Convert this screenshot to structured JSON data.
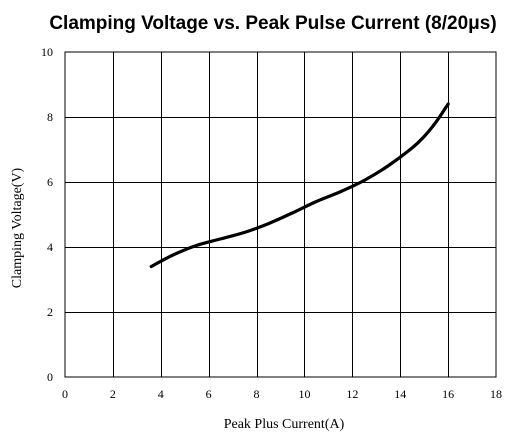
{
  "chart_data": {
    "type": "line",
    "title": "Clamping Voltage vs. Peak Pulse Current (8/20μs)",
    "xlabel": "Peak Plus Current(A)",
    "ylabel": "Clamping Voltage(V)",
    "xlim": [
      0,
      18
    ],
    "ylim": [
      0,
      10
    ],
    "x_ticks": [
      "0",
      "2",
      "4",
      "6",
      "8",
      "10",
      "12",
      "14",
      "16",
      "18"
    ],
    "y_ticks": [
      "0",
      "2",
      "4",
      "6",
      "8",
      "10"
    ],
    "grid": true,
    "series": [
      {
        "color": "#000000",
        "x": [
          3.6,
          4.5,
          5.5,
          6.5,
          7.5,
          8.5,
          9.5,
          10.5,
          11.5,
          12.5,
          13.5,
          14.5,
          15.0,
          15.5,
          16.0
        ],
        "y": [
          3.4,
          3.75,
          4.05,
          4.25,
          4.45,
          4.72,
          5.05,
          5.4,
          5.7,
          6.05,
          6.5,
          7.05,
          7.4,
          7.85,
          8.4
        ]
      }
    ]
  }
}
